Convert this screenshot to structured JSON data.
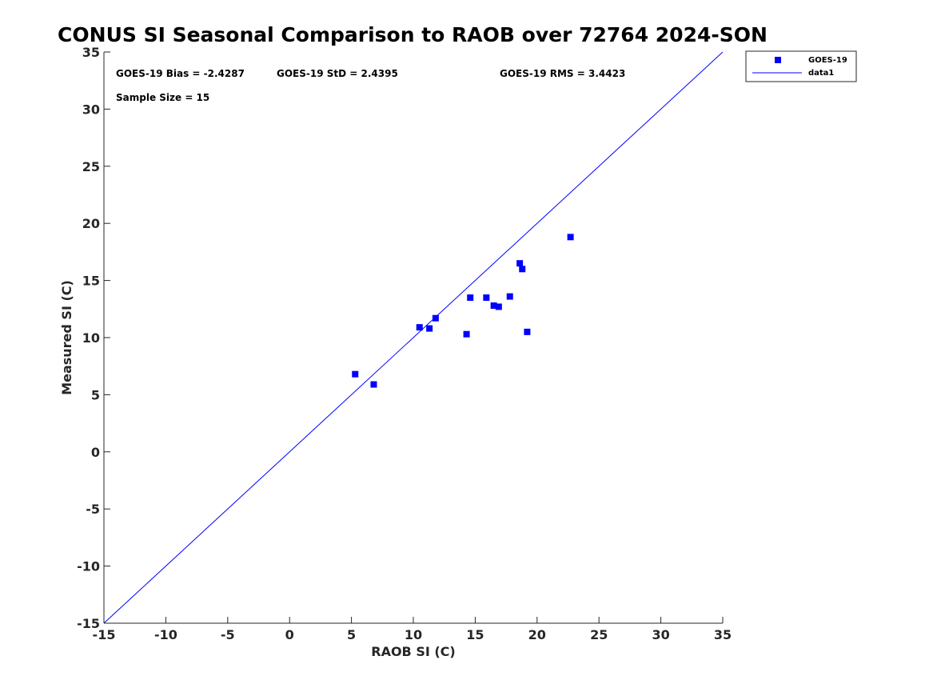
{
  "chart_data": {
    "type": "scatter",
    "title": "CONUS SI Seasonal Comparison to RAOB over 72764 2024-SON",
    "xlabel": "RAOB SI (C)",
    "ylabel": "Measured SI (C)",
    "xlim": [
      -15,
      35
    ],
    "ylim": [
      -15,
      35
    ],
    "xticks": [
      -15,
      -10,
      -5,
      0,
      5,
      10,
      15,
      20,
      25,
      30,
      35
    ],
    "yticks": [
      -15,
      -10,
      -5,
      0,
      5,
      10,
      15,
      20,
      25,
      30,
      35
    ],
    "grid": false,
    "series": [
      {
        "name": "GOES-19",
        "kind": "scatter",
        "marker": "square",
        "color": "#0000ff",
        "x": [
          5.3,
          6.8,
          10.5,
          11.3,
          11.8,
          14.3,
          14.6,
          15.9,
          16.5,
          16.9,
          17.8,
          18.6,
          18.8,
          19.2,
          22.7
        ],
        "y": [
          6.8,
          5.9,
          10.9,
          10.8,
          11.7,
          10.3,
          13.5,
          13.5,
          12.8,
          12.7,
          13.6,
          16.5,
          16.0,
          10.5,
          18.8
        ]
      },
      {
        "name": "data1",
        "kind": "line",
        "color": "#0000ff",
        "x": [
          -15,
          35
        ],
        "y": [
          -15,
          35
        ]
      }
    ],
    "annotations": {
      "bias": "GOES-19 Bias = -2.4287",
      "std": "GOES-19 StD = 2.4395",
      "rms": "GOES-19 RMS = 3.4423",
      "sample": "Sample Size = 15"
    },
    "legend": {
      "position": "top-right-outside",
      "entries": [
        "GOES-19",
        "data1"
      ]
    }
  }
}
